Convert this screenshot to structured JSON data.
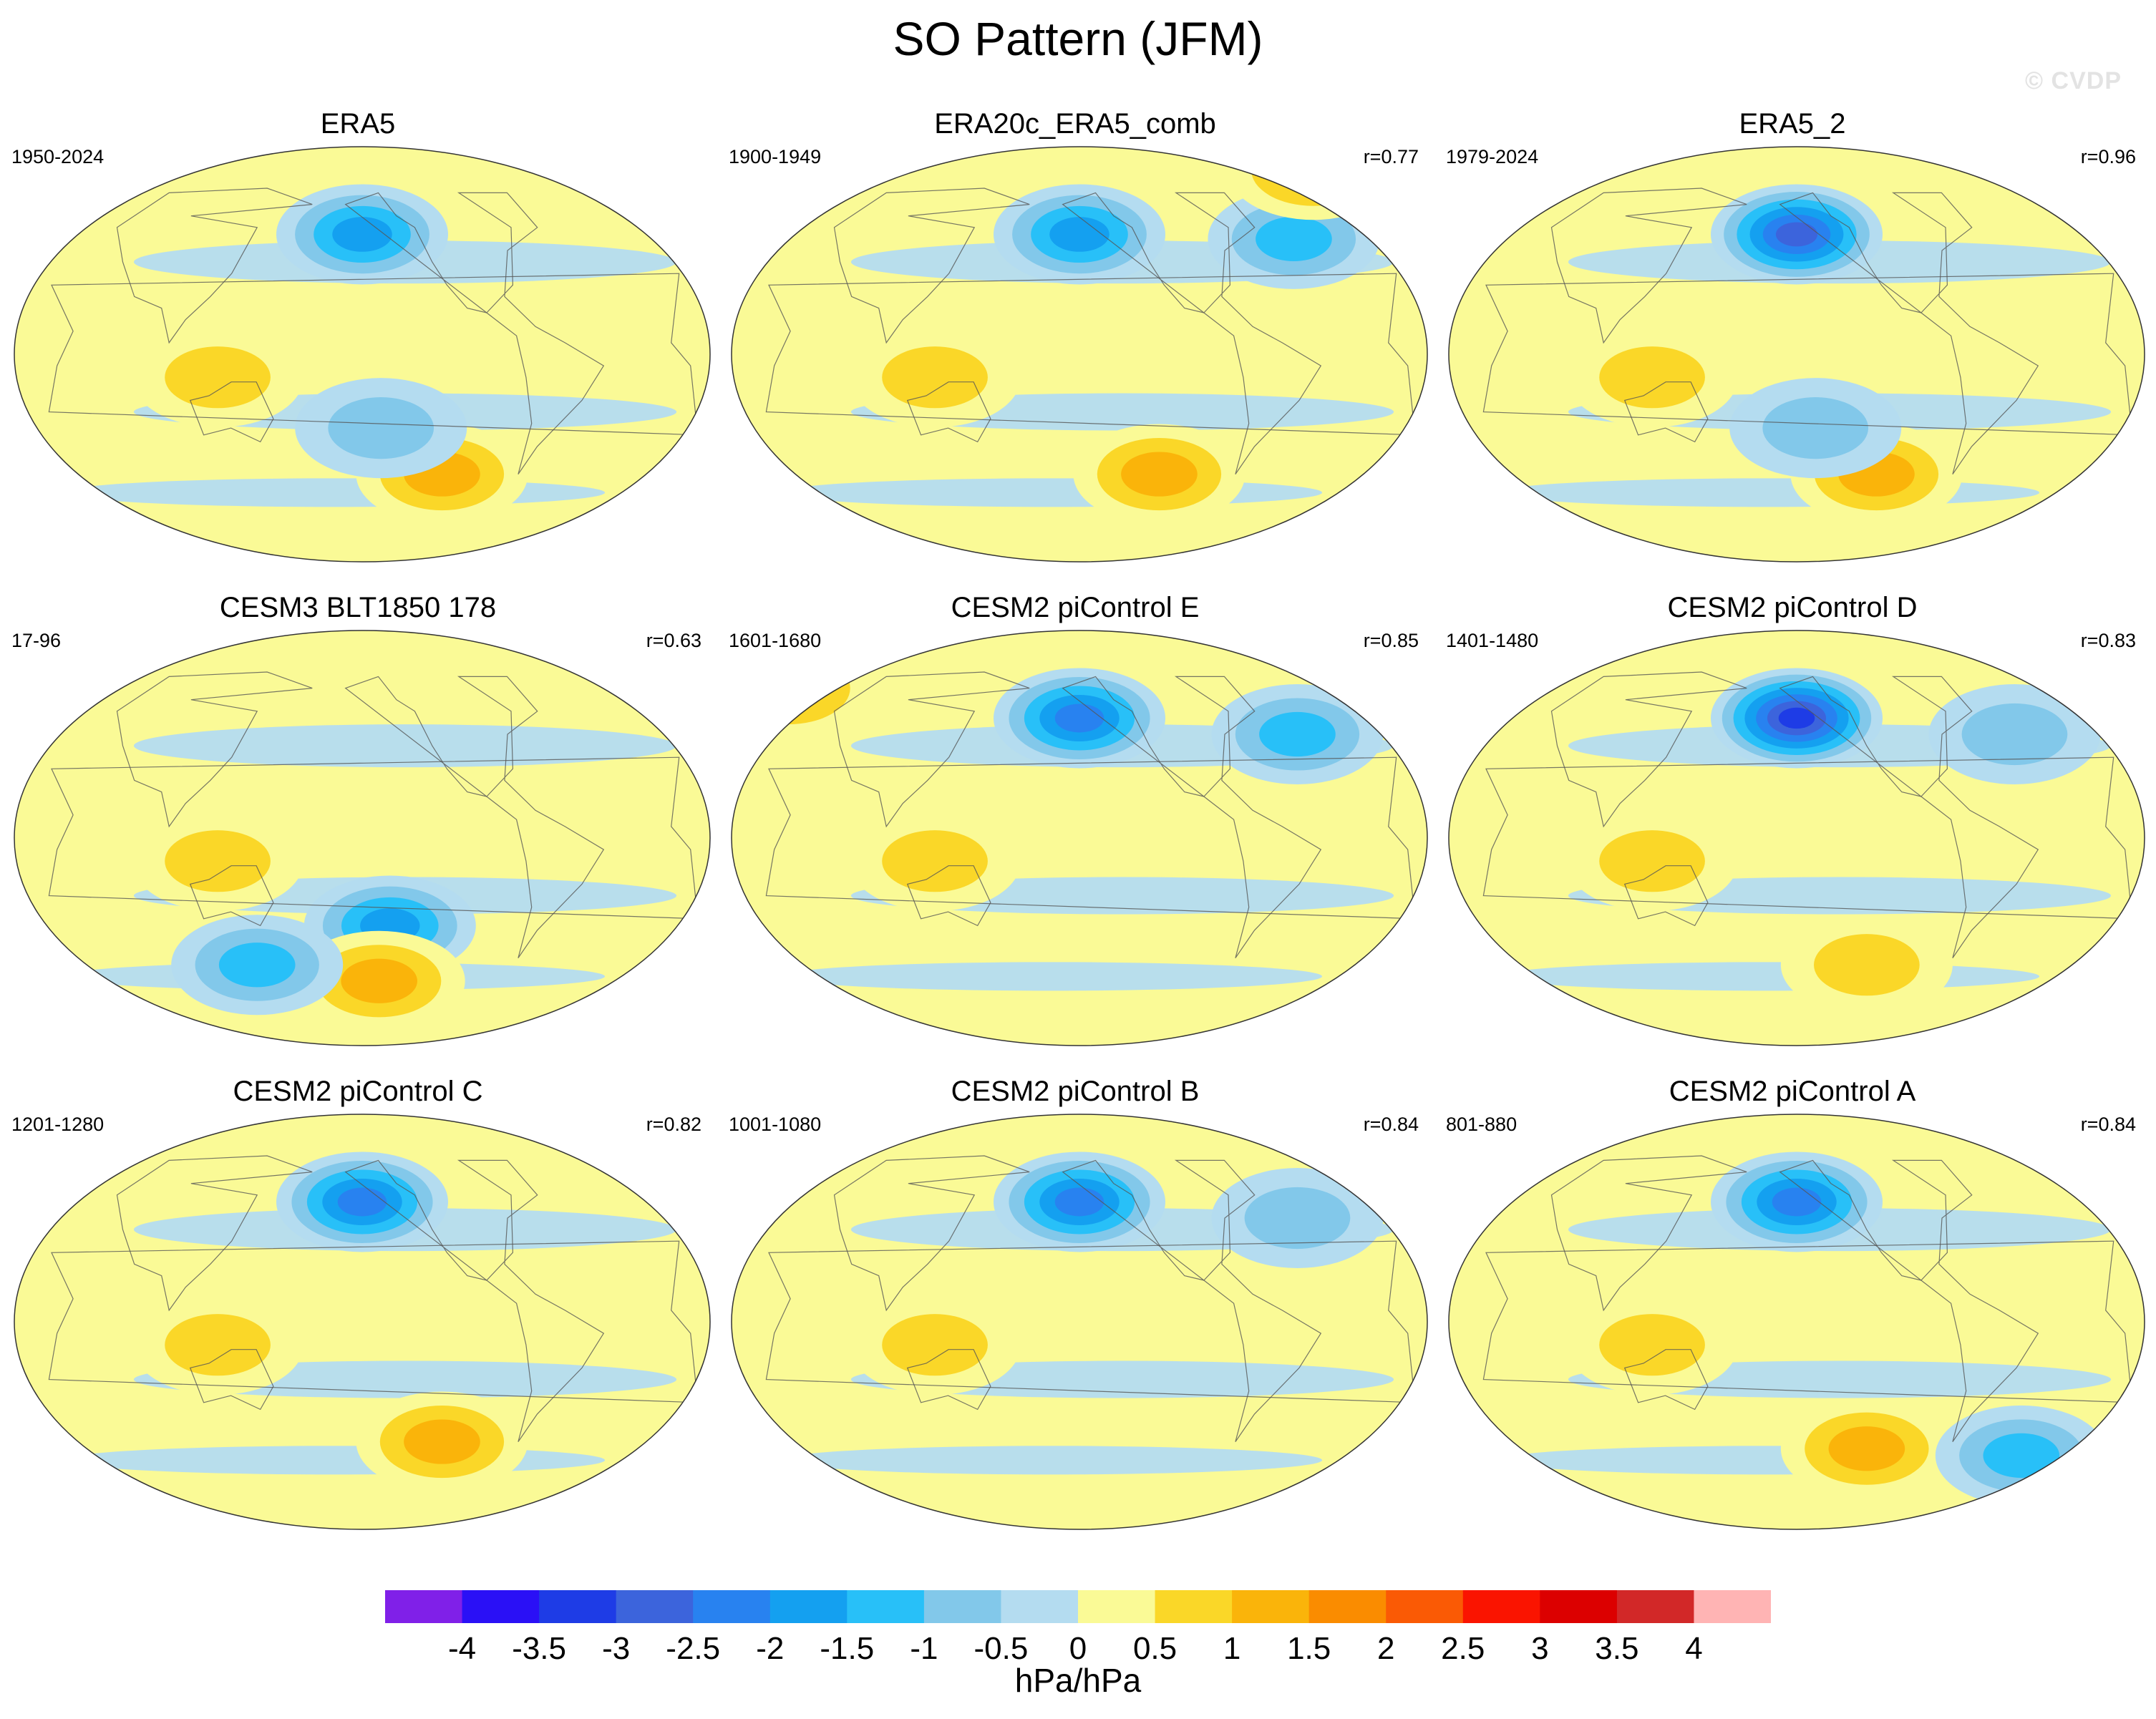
{
  "title": "SO Pattern (JFM)",
  "watermark": "© CVDP",
  "colorbar": {
    "units": "hPa/hPa",
    "labels": [
      "-4",
      "-3.5",
      "-3",
      "-2.5",
      "-2",
      "-1.5",
      "-1",
      "-0.5",
      "0",
      "0.5",
      "1",
      "1.5",
      "2",
      "2.5",
      "3",
      "3.5",
      "4"
    ],
    "colors": [
      "#8020e8",
      "#2a10f6",
      "#1e3ce6",
      "#3c64dc",
      "#2882f0",
      "#14a0f0",
      "#28c0f8",
      "#82c8ea",
      "#b4dcf0",
      "#fafa96",
      "#fad728",
      "#fab40a",
      "#fa8c00",
      "#fa5a05",
      "#fa1400",
      "#dc0000",
      "#d22828",
      "#ffb4b4"
    ],
    "min": -4.5,
    "max": 4.5,
    "step": 0.5
  },
  "chart_data": [
    {
      "type": "heatmap",
      "title": "ERA5",
      "years": "1950-2024",
      "r": "",
      "features": [
        {
          "name": "north-pacific-low",
          "lon": -160,
          "lat": 52,
          "value": -2.2
        },
        {
          "name": "south-pacific-high",
          "lon": -115,
          "lat": -52,
          "value": 1.4
        },
        {
          "name": "maritime-continent-high",
          "lon": 125,
          "lat": -10,
          "value": 0.9
        },
        {
          "name": "south-pacific-low",
          "lon": -150,
          "lat": -32,
          "value": -1.0
        }
      ]
    },
    {
      "type": "heatmap",
      "title": "ERA20c_ERA5_comb",
      "years": "1900-1949",
      "r": "r=0.77",
      "features": [
        {
          "name": "north-pacific-low",
          "lon": -160,
          "lat": 52,
          "value": -2.0
        },
        {
          "name": "north-atlantic-low",
          "lon": -40,
          "lat": 50,
          "value": -1.7
        },
        {
          "name": "south-pacific-high",
          "lon": -115,
          "lat": -52,
          "value": 1.6
        },
        {
          "name": "arctic-high",
          "lon": 0,
          "lat": 80,
          "value": 1.3
        },
        {
          "name": "maritime-continent-high",
          "lon": 125,
          "lat": -10,
          "value": 0.9
        }
      ]
    },
    {
      "type": "heatmap",
      "title": "ERA5_2",
      "years": "1979-2024",
      "r": "r=0.96",
      "features": [
        {
          "name": "north-pacific-low",
          "lon": -160,
          "lat": 52,
          "value": -2.9
        },
        {
          "name": "south-pacific-high",
          "lon": -115,
          "lat": -52,
          "value": 1.4
        },
        {
          "name": "maritime-continent-high",
          "lon": 125,
          "lat": -10,
          "value": 0.9
        },
        {
          "name": "south-pacific-low",
          "lon": -150,
          "lat": -32,
          "value": -1.0
        }
      ]
    },
    {
      "type": "heatmap",
      "title": "CESM3 BLT1850 178",
      "years": "17-96",
      "r": "r=0.63",
      "features": [
        {
          "name": "south-pacific-low",
          "lon": -145,
          "lat": -38,
          "value": -1.8
        },
        {
          "name": "southern-ocean-high",
          "lon": -150,
          "lat": -62,
          "value": 1.6
        },
        {
          "name": "indian-ocean-low",
          "lon": 140,
          "lat": -55,
          "value": -1.6
        },
        {
          "name": "maritime-continent-high",
          "lon": 125,
          "lat": -10,
          "value": 0.9
        }
      ]
    },
    {
      "type": "heatmap",
      "title": "CESM2 piControl E",
      "years": "1601-1680",
      "r": "r=0.85",
      "features": [
        {
          "name": "north-pacific-low",
          "lon": -160,
          "lat": 52,
          "value": -2.6
        },
        {
          "name": "north-atlantic-low",
          "lon": -40,
          "lat": 45,
          "value": -1.6
        },
        {
          "name": "scandinavian-high",
          "lon": 25,
          "lat": 65,
          "value": 1.6
        },
        {
          "name": "maritime-continent-high",
          "lon": 125,
          "lat": -10,
          "value": 0.9
        }
      ]
    },
    {
      "type": "heatmap",
      "title": "CESM2 piControl D",
      "years": "1401-1480",
      "r": "r=0.83",
      "features": [
        {
          "name": "north-pacific-low",
          "lon": -160,
          "lat": 52,
          "value": -3.3
        },
        {
          "name": "north-atlantic-low",
          "lon": -40,
          "lat": 45,
          "value": -1.0
        },
        {
          "name": "maritime-continent-high",
          "lon": 125,
          "lat": -10,
          "value": 1.1
        },
        {
          "name": "southern-ocean-high",
          "lon": -120,
          "lat": -55,
          "value": 0.8
        }
      ]
    },
    {
      "type": "heatmap",
      "title": "CESM2 piControl C",
      "years": "1201-1280",
      "r": "r=0.82",
      "features": [
        {
          "name": "north-pacific-low",
          "lon": -160,
          "lat": 52,
          "value": -2.7
        },
        {
          "name": "south-pacific-high",
          "lon": -115,
          "lat": -52,
          "value": 1.3
        },
        {
          "name": "maritime-continent-high",
          "lon": 125,
          "lat": -10,
          "value": 1.1
        }
      ]
    },
    {
      "type": "heatmap",
      "title": "CESM2 piControl B",
      "years": "1001-1080",
      "r": "r=0.84",
      "features": [
        {
          "name": "north-pacific-low",
          "lon": -160,
          "lat": 52,
          "value": -2.3
        },
        {
          "name": "north-atlantic-low",
          "lon": -40,
          "lat": 45,
          "value": -1.0
        },
        {
          "name": "maritime-continent-high",
          "lon": 125,
          "lat": -10,
          "value": 1.1
        }
      ]
    },
    {
      "type": "heatmap",
      "title": "CESM2 piControl A",
      "years": "801-880",
      "r": "r=0.84",
      "features": [
        {
          "name": "north-pacific-low",
          "lon": -160,
          "lat": 52,
          "value": -2.3
        },
        {
          "name": "southern-ocean-high",
          "lon": -120,
          "lat": -55,
          "value": 1.6
        },
        {
          "name": "atlantic-southern-low",
          "lon": -30,
          "lat": -58,
          "value": -1.7
        },
        {
          "name": "maritime-continent-high",
          "lon": 125,
          "lat": -10,
          "value": 1.1
        }
      ]
    }
  ]
}
